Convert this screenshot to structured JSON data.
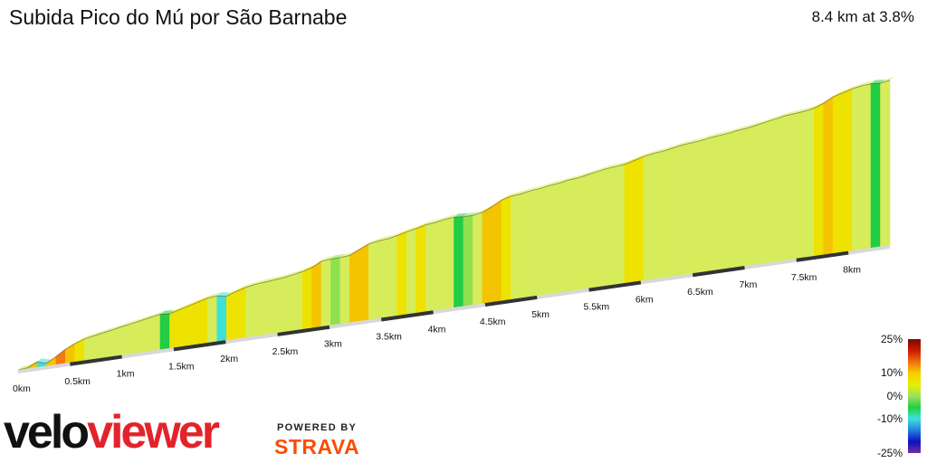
{
  "header": {
    "title": "Subida Pico do Mú por São Barnabe",
    "summary": "8.4 km at 3.8%"
  },
  "chart_data": {
    "type": "area",
    "title": "Subida Pico do Mú por São Barnabe",
    "distance_km": 8.4,
    "avg_gradient_pct": 3.8,
    "x_unit": "km",
    "x_ticks": [
      "0km",
      "0.5km",
      "1km",
      "1.5km",
      "2km",
      "2.5km",
      "3km",
      "3.5km",
      "4km",
      "4.5km",
      "5km",
      "5.5km",
      "6km",
      "6.5km",
      "7km",
      "7.5km",
      "8km"
    ],
    "relative_elevation_m": [
      0,
      1,
      6,
      3,
      9,
      16,
      21,
      25,
      27,
      29,
      31,
      33,
      35,
      37,
      39,
      41,
      40,
      43,
      46,
      49,
      52,
      53,
      51,
      55,
      58,
      60,
      61,
      62,
      63,
      65,
      67,
      70,
      76,
      77,
      77,
      78,
      83,
      88,
      90,
      91,
      93,
      96,
      98,
      101,
      102,
      104,
      105,
      104,
      104,
      106,
      111,
      117,
      120,
      121,
      123,
      124,
      126,
      127,
      129,
      130,
      132,
      134,
      136,
      137,
      138,
      141,
      144,
      146,
      147,
      149,
      151,
      152,
      153,
      155,
      156,
      157,
      159,
      160,
      162,
      164,
      166,
      168,
      169,
      170,
      172,
      176,
      182,
      185,
      188,
      190,
      191,
      190,
      192
    ],
    "gradient_scale": {
      "ticks": [
        "25%",
        "10%",
        "0%",
        "-10%",
        "-25%"
      ],
      "colors": [
        "#7a0a00",
        "#cc1a00",
        "#f07010",
        "#f5d000",
        "#e6f000",
        "#a0e060",
        "#20d040",
        "#40e0e0",
        "#2080e0",
        "#1010c0",
        "#7030a0"
      ]
    }
  },
  "branding": {
    "logo_left": "velo",
    "logo_right": "viewer",
    "powered_by": "POWERED BY",
    "partner": "STRAVA"
  }
}
